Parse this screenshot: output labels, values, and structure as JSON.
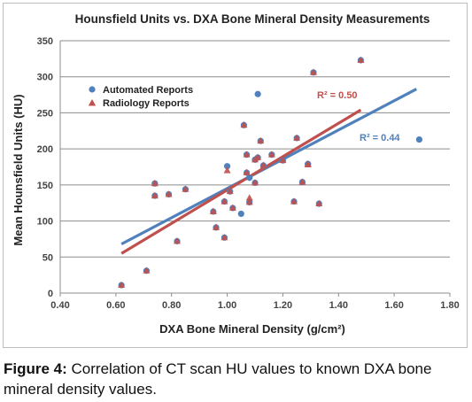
{
  "chart_data": {
    "type": "scatter",
    "title": "Hounsfield Units vs. DXA Bone Mineral Density Measurements",
    "xlabel": "DXA Bone Mineral Density (g/cm²)",
    "ylabel": "Mean Hounsfield Units (HU)",
    "xlim": [
      0.4,
      1.8
    ],
    "ylim": [
      0,
      350
    ],
    "xticks": [
      "0.40",
      "0.60",
      "0.80",
      "1.00",
      "1.20",
      "1.40",
      "1.60",
      "1.80"
    ],
    "yticks": [
      "0",
      "50",
      "100",
      "150",
      "200",
      "250",
      "300",
      "350"
    ],
    "grid": "horizontal",
    "legend_position": "top-left",
    "series": [
      {
        "name": "Automated Reports",
        "marker": "circle",
        "color": "#4f81bd",
        "x": [
          0.62,
          0.71,
          0.74,
          0.74,
          0.79,
          0.82,
          0.85,
          0.95,
          0.96,
          0.99,
          0.99,
          1.0,
          1.01,
          1.02,
          1.05,
          1.06,
          1.07,
          1.07,
          1.08,
          1.08,
          1.1,
          1.1,
          1.11,
          1.11,
          1.12,
          1.13,
          1.16,
          1.2,
          1.24,
          1.25,
          1.27,
          1.29,
          1.29,
          1.31,
          1.33,
          1.48,
          1.69
        ],
        "y": [
          11,
          31,
          152,
          135,
          137,
          72,
          144,
          113,
          91,
          77,
          127,
          176,
          141,
          118,
          110,
          233,
          167,
          192,
          126,
          160,
          185,
          153,
          276,
          188,
          211,
          177,
          192,
          184,
          127,
          215,
          154,
          179,
          179,
          306,
          124,
          323,
          213
        ]
      },
      {
        "name": "Radiology Reports",
        "marker": "triangle",
        "color": "#c0504d",
        "x": [
          0.62,
          0.71,
          0.74,
          0.74,
          0.79,
          0.82,
          0.85,
          0.95,
          0.96,
          0.99,
          0.99,
          1.0,
          1.01,
          1.02,
          1.06,
          1.07,
          1.07,
          1.08,
          1.08,
          1.1,
          1.1,
          1.11,
          1.12,
          1.13,
          1.16,
          1.2,
          1.24,
          1.25,
          1.27,
          1.29,
          1.29,
          1.31,
          1.33,
          1.48
        ],
        "y": [
          11,
          31,
          152,
          135,
          137,
          72,
          144,
          113,
          91,
          77,
          127,
          170,
          141,
          118,
          233,
          167,
          192,
          126,
          132,
          185,
          153,
          188,
          211,
          177,
          192,
          184,
          127,
          215,
          154,
          179,
          178,
          306,
          124,
          323
        ]
      }
    ],
    "trendlines": [
      {
        "series": "Automated Reports",
        "color": "#4f81bd",
        "x": [
          0.62,
          1.68
        ],
        "y": [
          68,
          283
        ],
        "label": "R² = 0.44"
      },
      {
        "series": "Radiology Reports",
        "color": "#c0504d",
        "x": [
          0.62,
          1.48
        ],
        "y": [
          55,
          254
        ],
        "label": "R² = 0.50"
      }
    ]
  },
  "caption": {
    "lead": "Figure 4:",
    "text": " Correlation of CT scan HU values to known DXA bone mineral density values."
  }
}
